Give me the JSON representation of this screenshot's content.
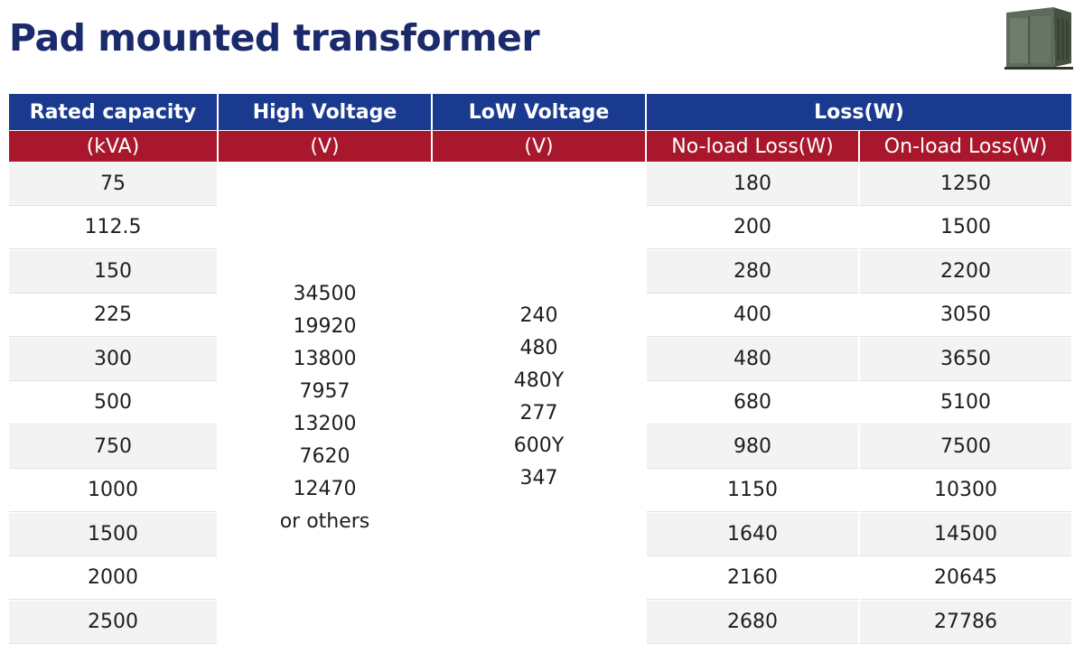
{
  "title": "Pad mounted transformer",
  "product_image": "pad-mounted-transformer-photo",
  "colors": {
    "title": "#1a2a6b",
    "header_blue": "#1a3a8f",
    "header_red": "#a8172c"
  },
  "table": {
    "header_top": {
      "rated_capacity": "Rated capacity",
      "high_voltage": "High Voltage",
      "low_voltage": "LoW Voltage",
      "loss": "Loss(W)"
    },
    "header_sub": {
      "rated_capacity_unit": "(kVA)",
      "high_voltage_unit": "(V)",
      "low_voltage_unit": "(V)",
      "no_load_loss": "No-load Loss(W)",
      "on_load_loss": "On-load Loss(W)"
    },
    "high_voltage_values": [
      "34500",
      "19920",
      "13800",
      "7957",
      "13200",
      "7620",
      "12470",
      "or others"
    ],
    "low_voltage_values": [
      "240",
      "480",
      "480Y",
      "277",
      "600Y",
      "347"
    ],
    "rows": [
      {
        "capacity": "75",
        "no_load": "180",
        "on_load": "1250"
      },
      {
        "capacity": "112.5",
        "no_load": "200",
        "on_load": "1500"
      },
      {
        "capacity": "150",
        "no_load": "280",
        "on_load": "2200"
      },
      {
        "capacity": "225",
        "no_load": "400",
        "on_load": "3050"
      },
      {
        "capacity": "300",
        "no_load": "480",
        "on_load": "3650"
      },
      {
        "capacity": "500",
        "no_load": "680",
        "on_load": "5100"
      },
      {
        "capacity": "750",
        "no_load": "980",
        "on_load": "7500"
      },
      {
        "capacity": "1000",
        "no_load": "1150",
        "on_load": "10300"
      },
      {
        "capacity": "1500",
        "no_load": "1640",
        "on_load": "14500"
      },
      {
        "capacity": "2000",
        "no_load": "2160",
        "on_load": "20645"
      },
      {
        "capacity": "2500",
        "no_load": "2680",
        "on_load": "27786"
      }
    ]
  }
}
